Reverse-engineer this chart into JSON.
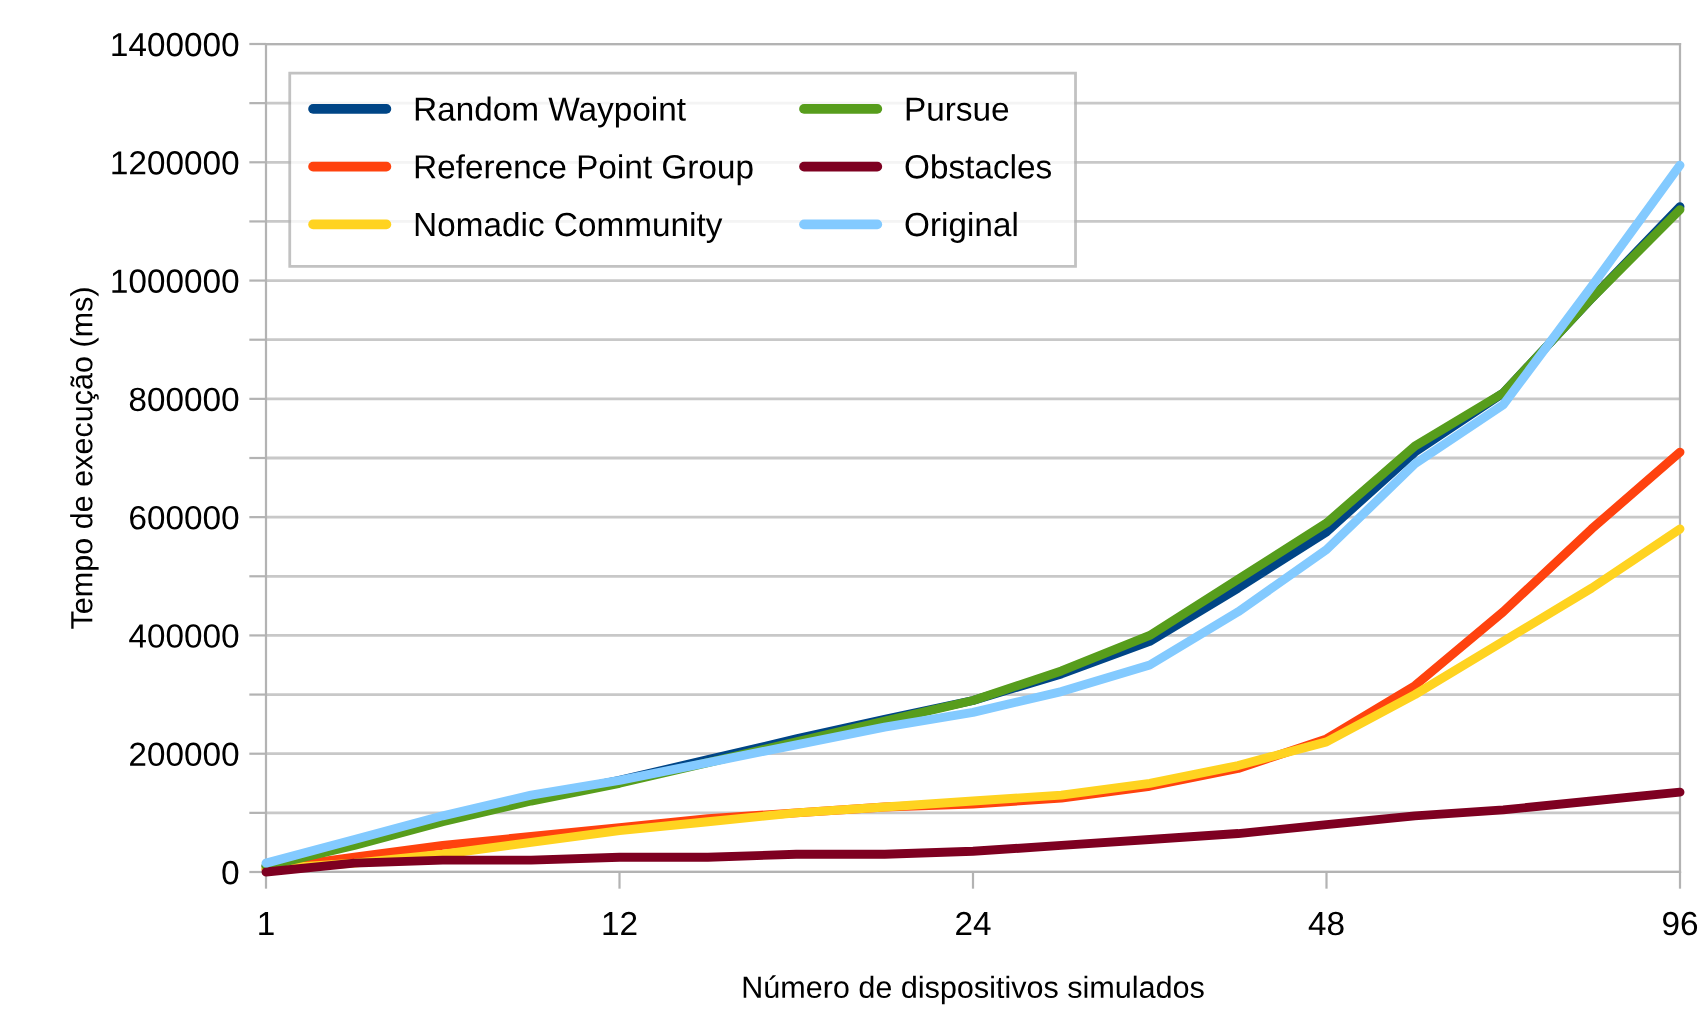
{
  "chart_data": {
    "type": "line",
    "xlabel": "Número de dispositivos simulados",
    "ylabel": "Tempo de execução (ms)",
    "categories": [
      "1",
      null,
      null,
      null,
      "12",
      null,
      null,
      null,
      "24",
      null,
      null,
      null,
      "48",
      null,
      null,
      null,
      "96"
    ],
    "series": [
      {
        "name": "Random Waypoint",
        "color": "#004586",
        "values": [
          10000,
          50000,
          90000,
          125000,
          155000,
          190000,
          225000,
          258000,
          290000,
          335000,
          390000,
          480000,
          575000,
          710000,
          810000,
          970000,
          1125000
        ]
      },
      {
        "name": "Reference Point Group",
        "color": "#ff420e",
        "values": [
          5000,
          25000,
          45000,
          60000,
          75000,
          90000,
          100000,
          110000,
          115000,
          125000,
          145000,
          175000,
          225000,
          315000,
          440000,
          580000,
          710000
        ]
      },
      {
        "name": "Nomadic Community",
        "color": "#ffd320",
        "values": [
          5000,
          15000,
          30000,
          50000,
          70000,
          85000,
          100000,
          110000,
          120000,
          130000,
          150000,
          180000,
          220000,
          300000,
          390000,
          480000,
          580000
        ]
      },
      {
        "name": "Pursue",
        "color": "#579d1c",
        "values": [
          10000,
          45000,
          85000,
          120000,
          150000,
          185000,
          220000,
          255000,
          290000,
          340000,
          400000,
          495000,
          590000,
          720000,
          810000,
          970000,
          1120000
        ]
      },
      {
        "name": "Obstacles",
        "color": "#7e0021",
        "values": [
          0,
          15000,
          20000,
          20000,
          25000,
          25000,
          30000,
          30000,
          35000,
          45000,
          55000,
          65000,
          80000,
          95000,
          105000,
          120000,
          135000
        ]
      },
      {
        "name": "Original",
        "color": "#83caff",
        "values": [
          15000,
          55000,
          95000,
          130000,
          155000,
          185000,
          215000,
          245000,
          270000,
          305000,
          350000,
          440000,
          545000,
          690000,
          790000,
          990000,
          1195000
        ]
      }
    ],
    "ylim": [
      0,
      1400000
    ],
    "yticks": [
      0,
      {
        "value": 100000,
        "label": null
      },
      200000,
      {
        "value": 300000,
        "label": null
      },
      400000,
      {
        "value": 500000,
        "label": null
      },
      600000,
      {
        "value": 700000,
        "label": null
      },
      800000,
      {
        "value": 900000,
        "label": null
      },
      1000000,
      {
        "value": 1100000,
        "label": null
      },
      1200000,
      {
        "value": 1300000,
        "label": null
      },
      1400000
    ],
    "grid": "y",
    "legend": "top left",
    "marker": "none",
    "line_style": "solid"
  }
}
